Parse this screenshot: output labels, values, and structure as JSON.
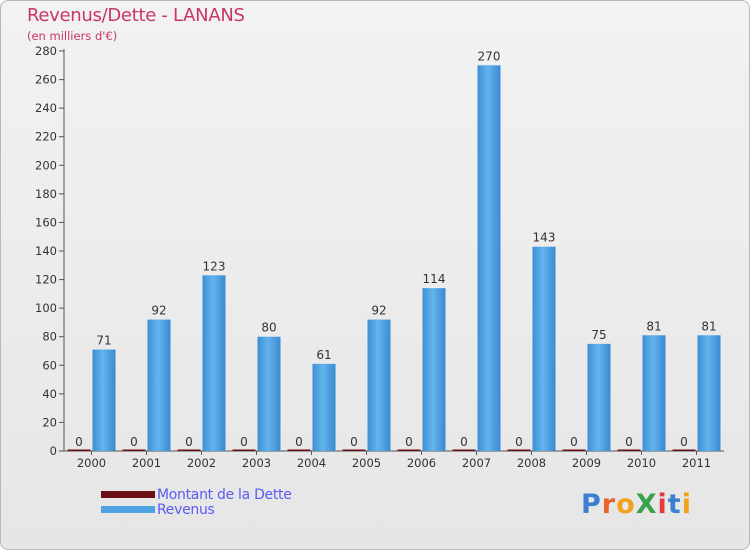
{
  "chart_data": {
    "type": "bar",
    "title": "Revenus/Dette - LANANS",
    "subtitle": "(en milliers d'€)",
    "categories": [
      "2000",
      "2001",
      "2002",
      "2003",
      "2004",
      "2005",
      "2006",
      "2007",
      "2008",
      "2009",
      "2010",
      "2011"
    ],
    "series": [
      {
        "name": "Montant de la Dette",
        "values": [
          0,
          0,
          0,
          0,
          0,
          0,
          0,
          0,
          0,
          0,
          0,
          0
        ],
        "color": "#6b0f16"
      },
      {
        "name": "Revenus",
        "values": [
          71,
          92,
          123,
          80,
          61,
          92,
          114,
          270,
          143,
          75,
          81,
          81
        ],
        "color": "#4fa3e3"
      }
    ],
    "ylim": [
      0,
      280
    ],
    "yticks": [
      0,
      20,
      40,
      60,
      80,
      100,
      120,
      140,
      160,
      180,
      200,
      220,
      240,
      260,
      280
    ],
    "grid": false,
    "legend_position": "bottom-left"
  },
  "colors": {
    "title": "#c8356b",
    "legend_text": "#5b5bf0"
  },
  "logo": {
    "text": "ProXiti"
  }
}
